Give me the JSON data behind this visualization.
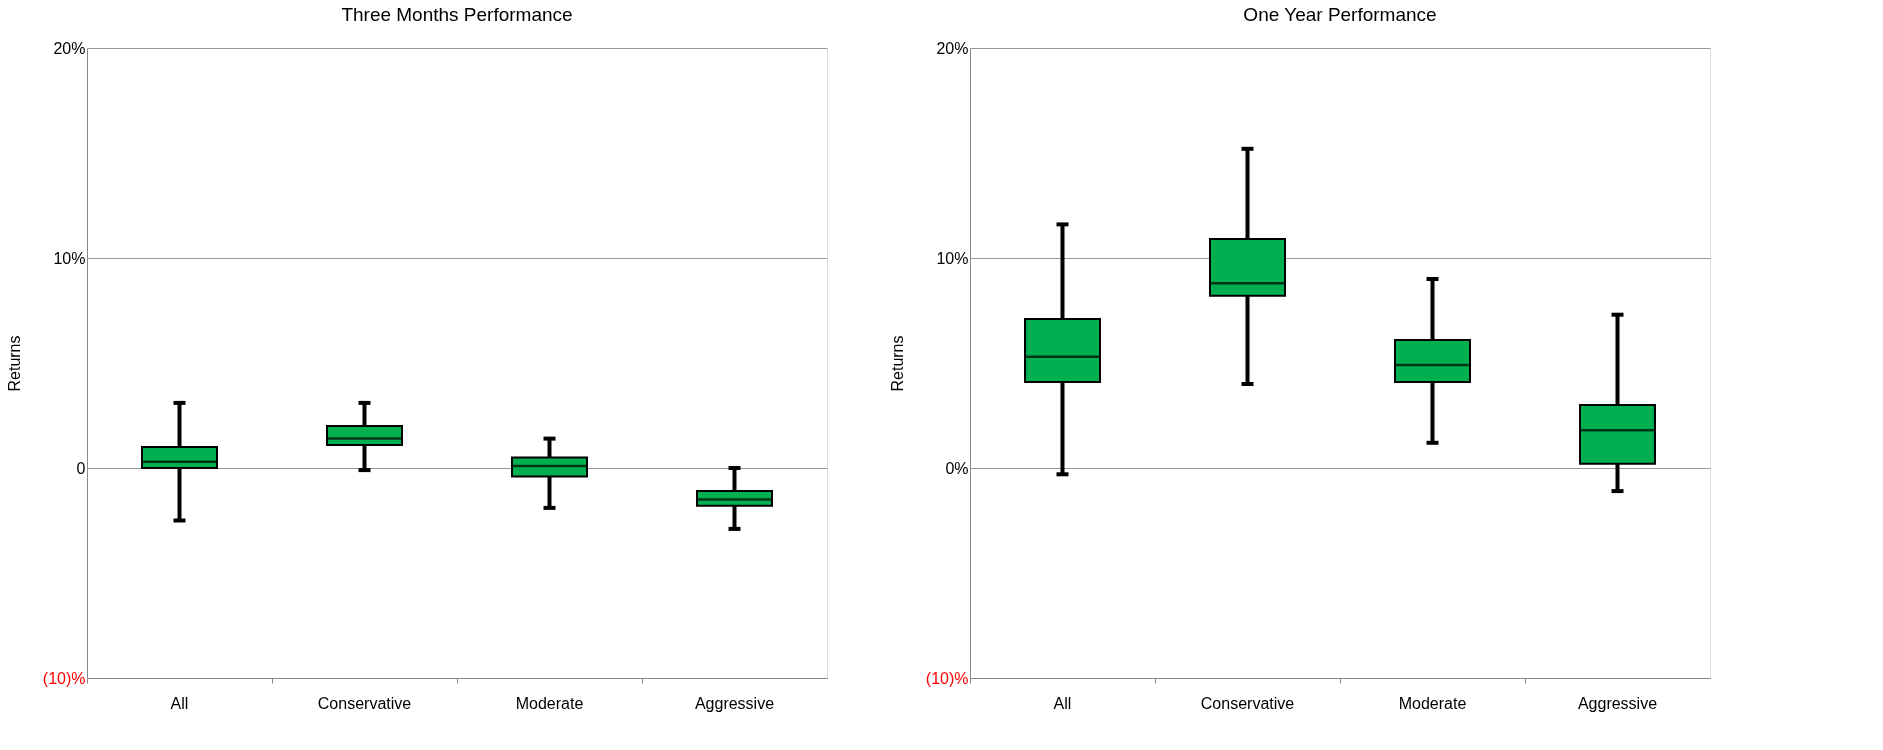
{
  "chart_data": [
    {
      "type": "box",
      "title": "Three Months Performance",
      "ylabel": "Returns",
      "categories": [
        "All",
        "Conservative",
        "Moderate",
        "Aggressive"
      ],
      "series": [
        {
          "color": "#00b050",
          "boxes": [
            {
              "low": -2.5,
              "q1": 0.0,
              "median": 0.3,
              "q3": 1.0,
              "high": 3.1
            },
            {
              "low": -0.1,
              "q1": 1.1,
              "median": 1.4,
              "q3": 2.0,
              "high": 3.1
            },
            {
              "low": -1.9,
              "q1": -0.4,
              "median": 0.1,
              "q3": 0.5,
              "high": 1.4
            },
            {
              "low": -2.9,
              "q1": -1.8,
              "median": -1.5,
              "q3": -1.1,
              "high": 0.0
            }
          ]
        }
      ],
      "ylim": [
        -10,
        20
      ],
      "yticks": [
        {
          "value": -10,
          "label": "(10)%"
        },
        {
          "value": 0,
          "label": "0"
        },
        {
          "value": 10,
          "label": "10%"
        },
        {
          "value": 20,
          "label": "20%"
        }
      ],
      "grid": "y"
    },
    {
      "type": "box",
      "title": "One Year Performance",
      "ylabel": "Returns",
      "categories": [
        "All",
        "Conservative",
        "Moderate",
        "Aggressive"
      ],
      "series": [
        {
          "color": "#00b050",
          "boxes": [
            {
              "low": -0.3,
              "q1": 4.1,
              "median": 5.3,
              "q3": 7.1,
              "high": 11.6
            },
            {
              "low": 4.0,
              "q1": 8.2,
              "median": 8.8,
              "q3": 10.9,
              "high": 15.2
            },
            {
              "low": 1.2,
              "q1": 4.1,
              "median": 4.9,
              "q3": 6.1,
              "high": 9.0
            },
            {
              "low": -1.1,
              "q1": 0.2,
              "median": 1.8,
              "q3": 3.0,
              "high": 7.3
            }
          ]
        }
      ],
      "ylim": [
        -10,
        20
      ],
      "yticks": [
        {
          "value": -10,
          "label": "(10)%"
        },
        {
          "value": 0,
          "label": "0%"
        },
        {
          "value": 10,
          "label": "10%"
        },
        {
          "value": 20,
          "label": "20%"
        }
      ],
      "grid": "y"
    }
  ]
}
